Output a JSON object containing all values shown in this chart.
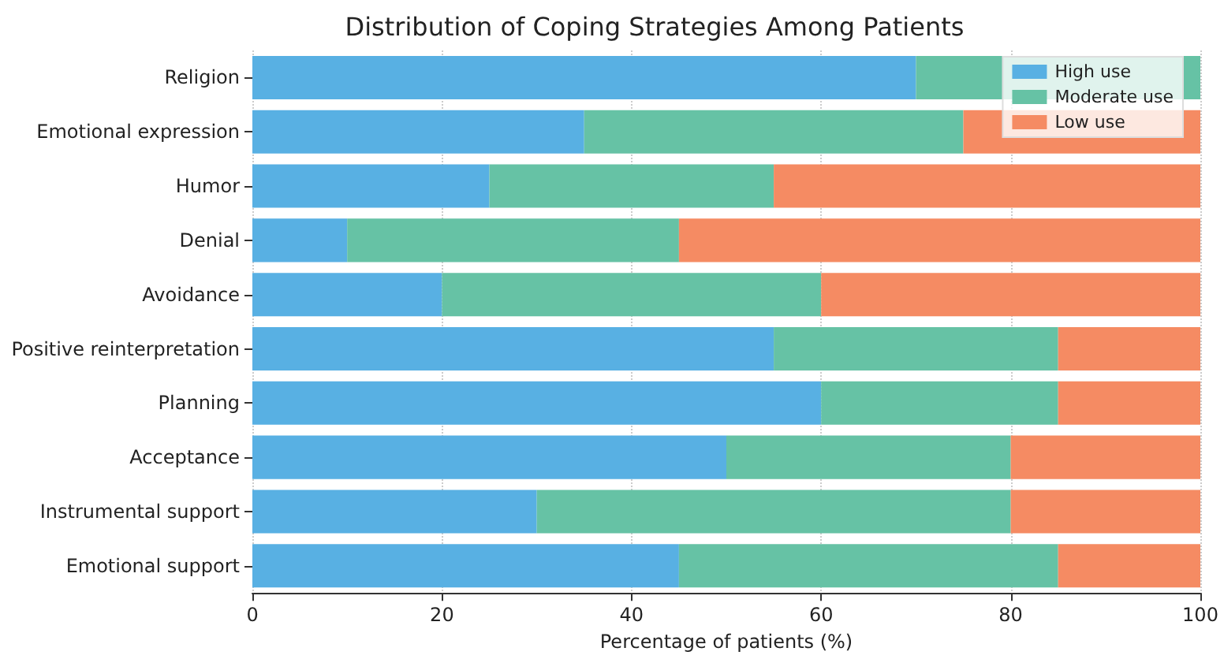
{
  "chart_data": {
    "type": "bar",
    "orientation": "horizontal",
    "stacked": true,
    "title": "Distribution of Coping Strategies Among Patients",
    "xlabel": "Percentage of patients (%)",
    "categories": [
      "Religion",
      "Emotional expression",
      "Humor",
      "Denial",
      "Avoidance",
      "Positive reinterpretation",
      "Planning",
      "Acceptance",
      "Instrumental support",
      "Emotional support"
    ],
    "series": [
      {
        "name": "High use",
        "color": "#58b0e3",
        "values": [
          70,
          35,
          25,
          10,
          20,
          55,
          60,
          50,
          30,
          45
        ]
      },
      {
        "name": "Moderate use",
        "color": "#66c2a5",
        "values": [
          30,
          40,
          30,
          35,
          40,
          30,
          25,
          30,
          50,
          40
        ]
      },
      {
        "name": "Low use",
        "color": "#f58b63",
        "values": [
          0,
          25,
          45,
          55,
          40,
          15,
          15,
          20,
          20,
          15
        ]
      }
    ],
    "xlim": [
      0,
      100
    ],
    "xticks": [
      0,
      20,
      40,
      60,
      80,
      100
    ],
    "grid": "x",
    "legend": "top right"
  }
}
